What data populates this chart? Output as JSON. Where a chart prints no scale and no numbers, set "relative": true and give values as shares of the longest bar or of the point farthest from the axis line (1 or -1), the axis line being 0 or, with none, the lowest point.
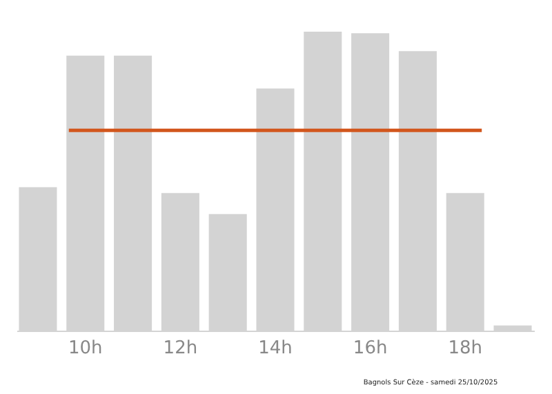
{
  "chart_data": {
    "type": "bar",
    "relative": true,
    "categories": [
      null,
      "10h",
      null,
      "12h",
      null,
      "14h",
      null,
      "16h",
      null,
      "18h",
      null
    ],
    "series": [
      {
        "color": "#d3d3d3",
        "values": [
          0.48,
          0.92,
          0.92,
          0.46,
          0.39,
          0.81,
          1,
          0.995,
          0.935,
          0.46,
          0.017
        ]
      }
    ],
    "ref_lines": [
      {
        "axis": "y",
        "value": 0.67,
        "color": "#d2561c"
      }
    ],
    "annotations": [
      "Bagnols Sur Cèze - samedi 25/10/2025"
    ]
  }
}
